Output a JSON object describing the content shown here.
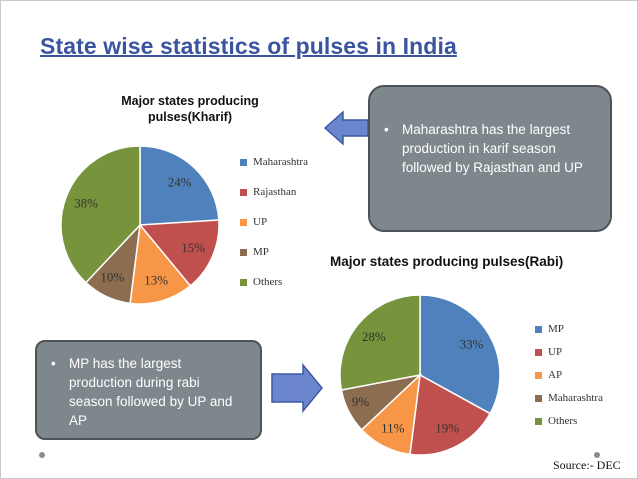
{
  "slide": {
    "title": "State wise statistics of pulses in India",
    "source": "Source:- DEC"
  },
  "callouts": {
    "kharif_note": "Maharashtra has the largest production in karif season followed by Rajasthan and UP",
    "rabi_note": "MP has the largest production during rabi season followed by UP and AP",
    "bullet": "•"
  },
  "colors": {
    "blue": "#4f81bd",
    "red": "#c0504d",
    "orange": "#f79646",
    "brown": "#8c6d50",
    "green": "#77933c",
    "callout_bg": "#7d878c",
    "arrow": "#6b86cc",
    "title": "#3a54a0"
  },
  "icons": {
    "arrow_1": "left-arrow-icon",
    "arrow_2": "right-arrow-icon"
  },
  "chart_data": [
    {
      "type": "pie",
      "title": "Major states producing pulses(Kharif)",
      "categories": [
        "Maharashtra",
        "Rajasthan",
        "UP",
        "MP",
        "Others"
      ],
      "values": [
        24,
        15,
        13,
        10,
        38
      ],
      "labels": [
        "24%",
        "15%",
        "13%",
        "10%",
        "38%"
      ],
      "colors": [
        "#4f81bd",
        "#c0504d",
        "#f79646",
        "#8c6d50",
        "#77933c"
      ],
      "legend_position": "right"
    },
    {
      "type": "pie",
      "title": "Major states producing pulses(Rabi)",
      "categories": [
        "MP",
        "UP",
        "AP",
        "Maharashtra",
        "Others"
      ],
      "values": [
        33,
        19,
        11,
        9,
        28
      ],
      "labels": [
        "33%",
        "19%",
        "11%",
        "9%",
        "28%"
      ],
      "colors": [
        "#4f81bd",
        "#c0504d",
        "#f79646",
        "#8c6d50",
        "#77933c"
      ],
      "legend_position": "right"
    }
  ]
}
